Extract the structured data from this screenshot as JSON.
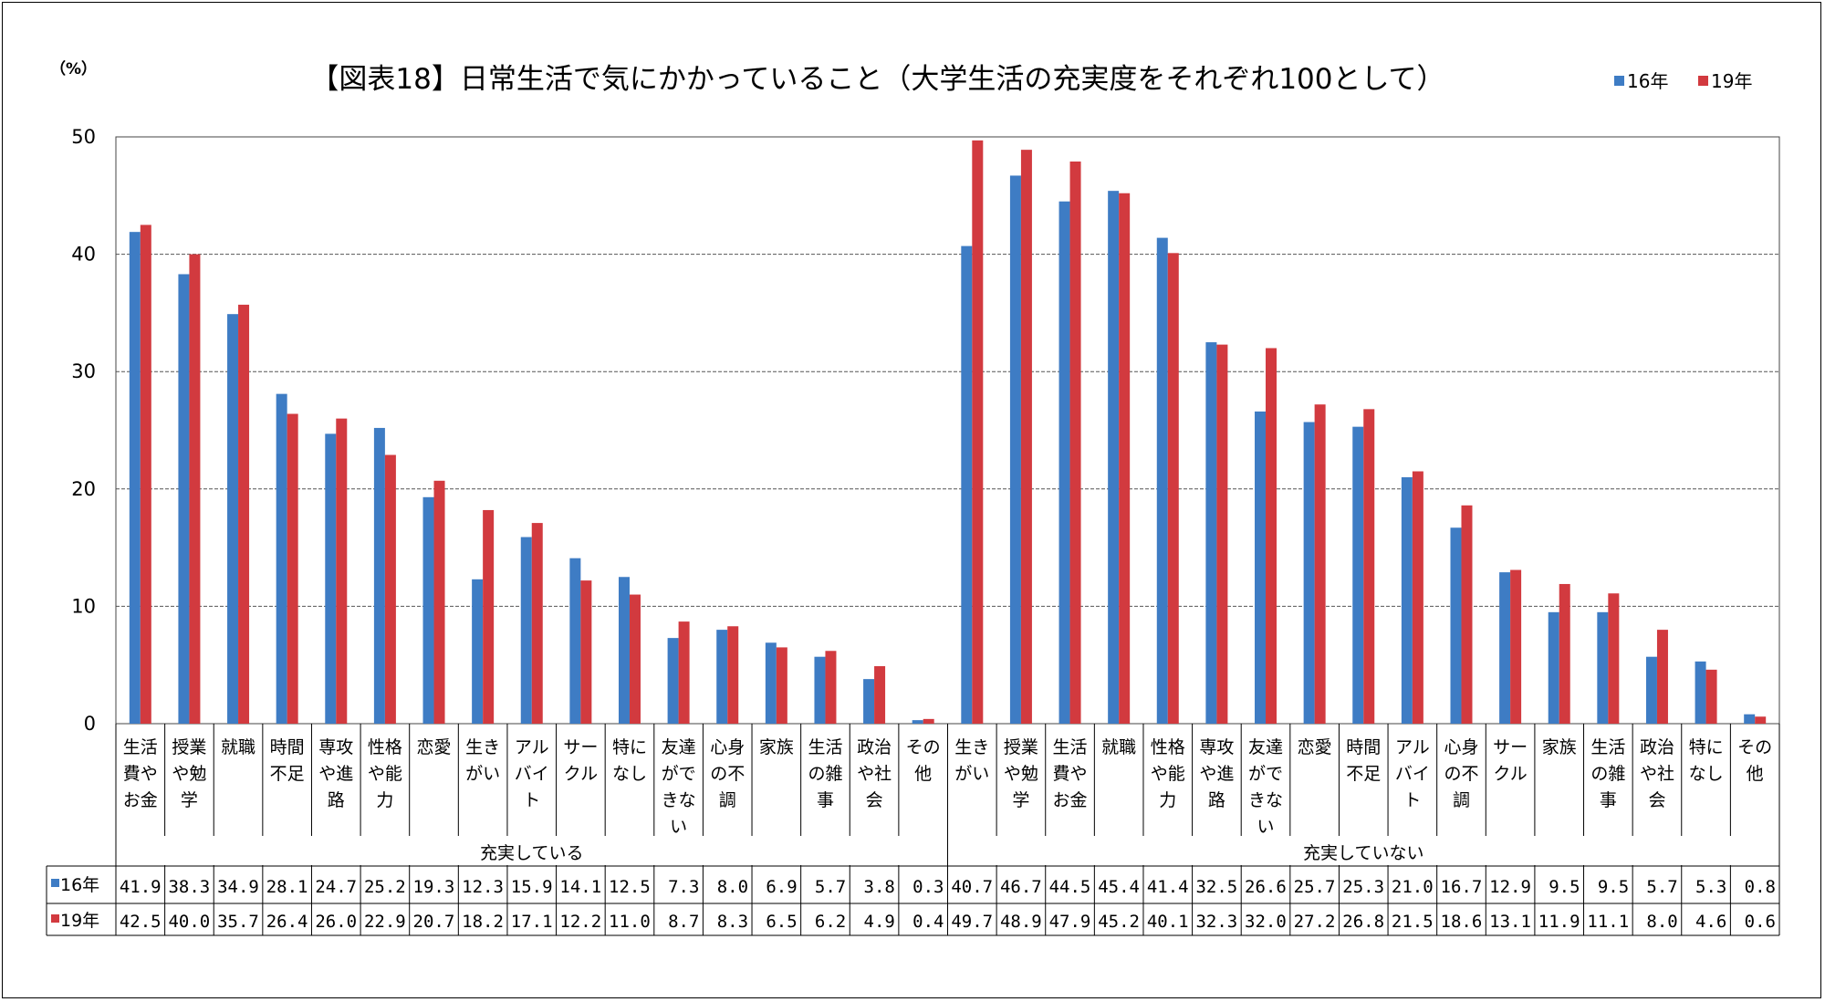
{
  "chart_data": {
    "type": "bar",
    "title": "【図表18】日常生活で気にかかっていること（大学生活の充実度をそれぞれ100として）",
    "unit_label": "（%）",
    "ylim": [
      0,
      50
    ],
    "y_ticks": [
      "0",
      "10",
      "20",
      "30",
      "40",
      "50"
    ],
    "grid": true,
    "legend_position": "top-right",
    "colors": {
      "16年": "#3E7CC4",
      "19年": "#D23A3F"
    },
    "groups": [
      {
        "label": "充実している",
        "categories": [
          [
            "生活",
            "費や",
            "お金"
          ],
          [
            "授業",
            "や勉",
            "学"
          ],
          [
            "就職"
          ],
          [
            "時間",
            "不足"
          ],
          [
            "専攻",
            "や進",
            "路"
          ],
          [
            "性格",
            "や能",
            "力"
          ],
          [
            "恋愛"
          ],
          [
            "生き",
            "がい"
          ],
          [
            "アル",
            "バイ",
            "ト"
          ],
          [
            "サー",
            "クル"
          ],
          [
            "特に",
            "なし"
          ],
          [
            "友達",
            "がで",
            "きな",
            "い"
          ],
          [
            "心身",
            "の不",
            "調"
          ],
          [
            "家族"
          ],
          [
            "生活",
            "の雑",
            "事"
          ],
          [
            "政治",
            "や社",
            "会"
          ],
          [
            "その",
            "他"
          ]
        ],
        "series": [
          {
            "name": "16年",
            "values": [
              41.9,
              38.3,
              34.9,
              28.1,
              24.7,
              25.2,
              19.3,
              12.3,
              15.9,
              14.1,
              12.5,
              7.3,
              8.0,
              6.9,
              5.7,
              3.8,
              0.3
            ]
          },
          {
            "name": "19年",
            "values": [
              42.5,
              40.0,
              35.7,
              26.4,
              26.0,
              22.9,
              20.7,
              18.2,
              17.1,
              12.2,
              11.0,
              8.7,
              8.3,
              6.5,
              6.2,
              4.9,
              0.4
            ]
          }
        ]
      },
      {
        "label": "充実していない",
        "categories": [
          [
            "生き",
            "がい"
          ],
          [
            "授業",
            "や勉",
            "学"
          ],
          [
            "生活",
            "費や",
            "お金"
          ],
          [
            "就職"
          ],
          [
            "性格",
            "や能",
            "力"
          ],
          [
            "専攻",
            "や進",
            "路"
          ],
          [
            "友達",
            "がで",
            "きな",
            "い"
          ],
          [
            "恋愛"
          ],
          [
            "時間",
            "不足"
          ],
          [
            "アル",
            "バイ",
            "ト"
          ],
          [
            "心身",
            "の不",
            "調"
          ],
          [
            "サー",
            "クル"
          ],
          [
            "家族"
          ],
          [
            "生活",
            "の雑",
            "事"
          ],
          [
            "政治",
            "や社",
            "会"
          ],
          [
            "特に",
            "なし"
          ],
          [
            "その",
            "他"
          ]
        ],
        "series": [
          {
            "name": "16年",
            "values": [
              40.7,
              46.7,
              44.5,
              45.4,
              41.4,
              32.5,
              26.6,
              25.7,
              25.3,
              21.0,
              16.7,
              12.9,
              9.5,
              9.5,
              5.7,
              5.3,
              0.8
            ]
          },
          {
            "name": "19年",
            "values": [
              49.7,
              48.9,
              47.9,
              45.2,
              40.1,
              32.3,
              32.0,
              27.2,
              26.8,
              21.5,
              18.6,
              13.1,
              11.9,
              11.1,
              8.0,
              4.6,
              0.6
            ]
          }
        ]
      }
    ]
  }
}
